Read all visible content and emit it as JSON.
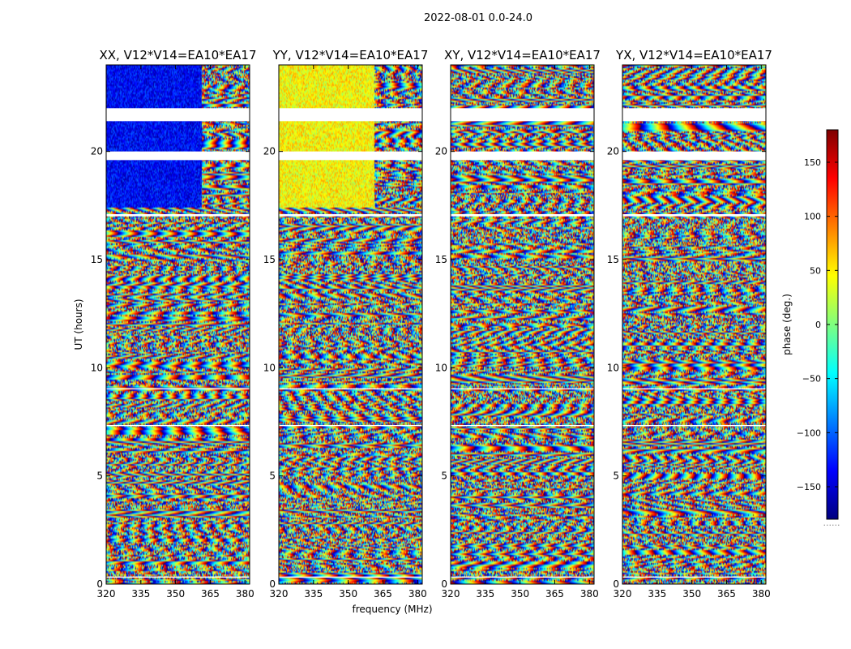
{
  "figure": {
    "suptitle": "2022-08-01 0.0-24.0",
    "xlabel": "frequency (MHz)",
    "ylabel": "UT (hours)",
    "colorbar_label": "phase (deg.)",
    "colorbar_footer": "......"
  },
  "chart_data": {
    "type": "heatmap",
    "colormap": "jet",
    "colors": [
      "#00007f",
      "#0000ff",
      "#007fff",
      "#00ffff",
      "#7fff7f",
      "#ffff00",
      "#ff7f00",
      "#ff0000",
      "#7f0000"
    ],
    "xlim": [
      320,
      382
    ],
    "ylim": [
      0,
      24
    ],
    "clim": [
      -180,
      180
    ],
    "x_ticks": [
      320,
      335,
      350,
      365,
      380
    ],
    "y_ticks": [
      0,
      5,
      10,
      15,
      20
    ],
    "colorbar_ticks": [
      150,
      100,
      50,
      0,
      -50,
      -100,
      -150
    ],
    "panels": [
      {
        "title": "XX, V12*V14=EA10*EA17",
        "base_phase": -135
      },
      {
        "title": "YY, V12*V14=EA10*EA17",
        "base_phase": 45
      },
      {
        "title": "XY, V12*V14=EA10*EA17",
        "base_phase": null
      },
      {
        "title": "YX, V12*V14=EA10*EA17",
        "base_phase": null
      }
    ],
    "flagged_ut_ranges": [
      [
        22.0,
        21.4
      ],
      [
        20.0,
        19.6
      ],
      [
        17.1,
        17.0
      ],
      [
        9.05,
        9.0
      ],
      [
        7.35,
        7.3
      ],
      [
        0.35,
        0.3
      ]
    ]
  }
}
